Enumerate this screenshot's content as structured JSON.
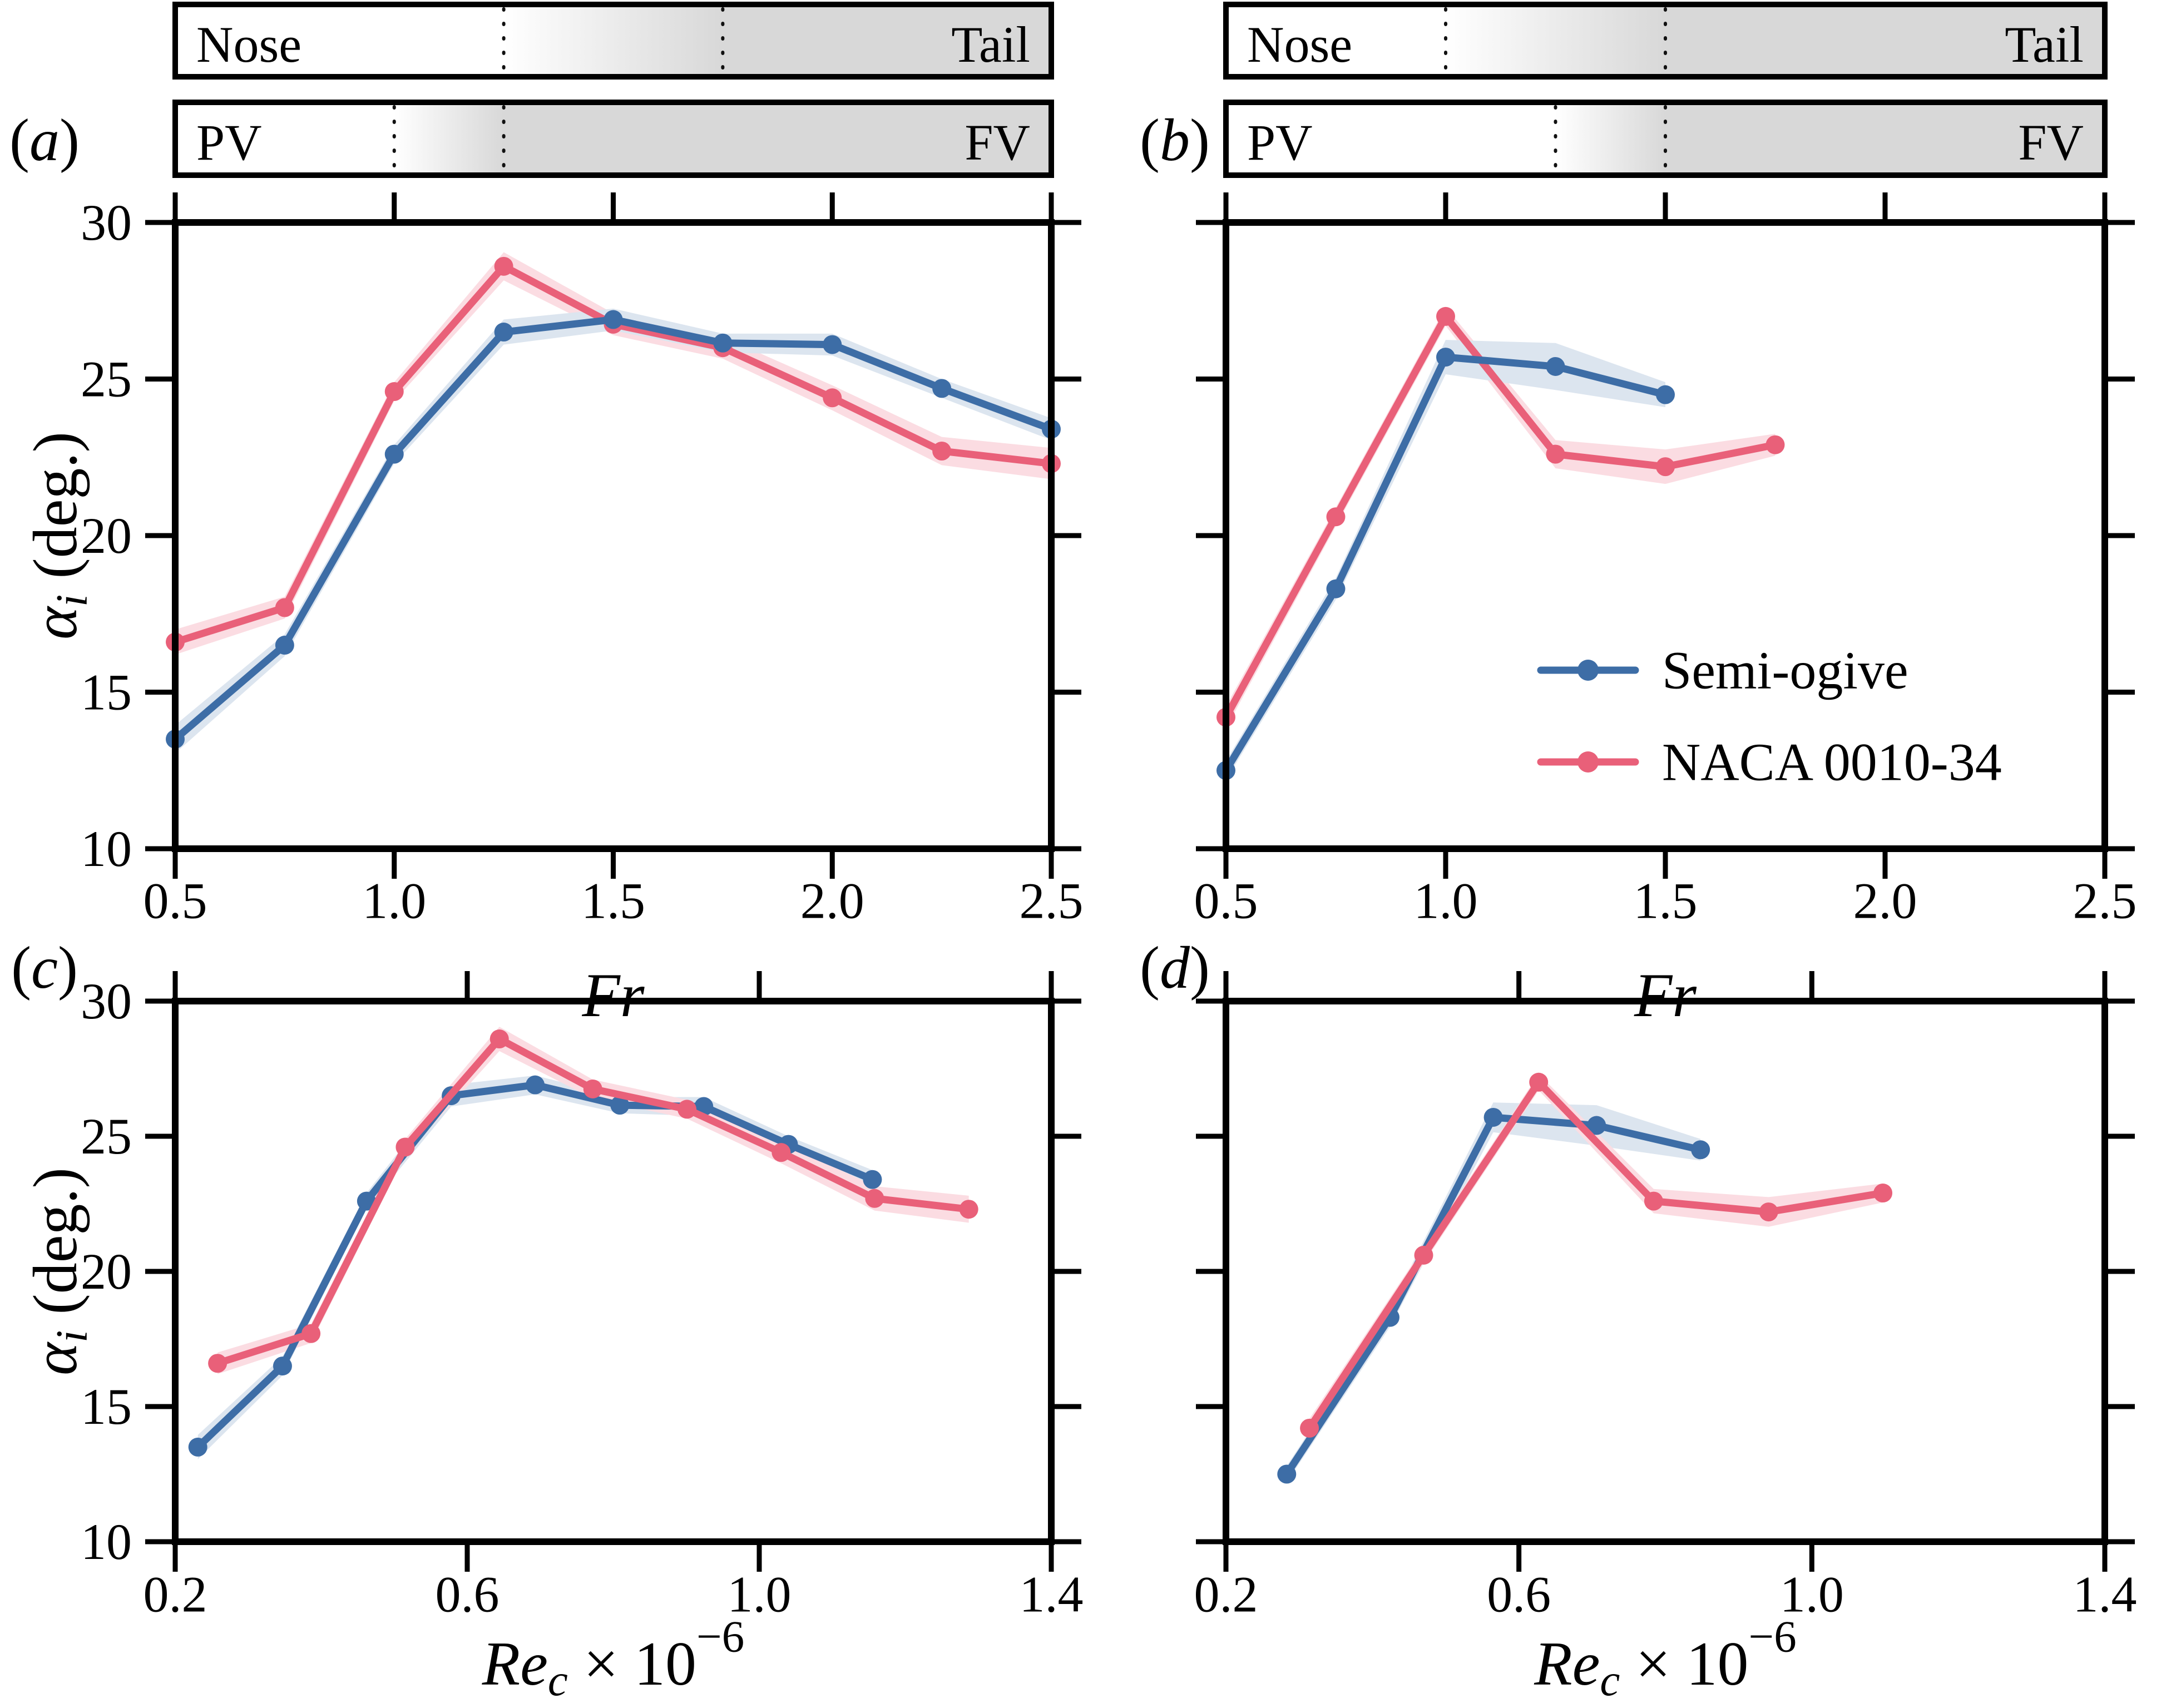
{
  "colors": {
    "semi_ogive": "#3d6da6",
    "semi_ogive_band": "#dce5ef",
    "naca": "#e96079",
    "naca_band": "#fbdce2",
    "bar_gray": "#d8d8d8",
    "axis": "#000000"
  },
  "legend": {
    "entries": [
      {
        "label": "Semi-ogive",
        "series": "semi-ogive"
      },
      {
        "label": "NACA 0010-34",
        "series": "naca"
      }
    ]
  },
  "chart_data": [
    {
      "id": "a",
      "type": "line",
      "panel_label": "a",
      "bars": [
        {
          "left": "Nose",
          "right": "Tail",
          "transition_start": 1.25,
          "transition_end": 1.75
        },
        {
          "left": "PV",
          "right": "FV",
          "transition_start": 1.0,
          "transition_end": 1.25
        }
      ],
      "x_axis": {
        "min": 0.5,
        "max": 2.5,
        "tick_values": [
          0.5,
          1.0,
          1.5,
          2.0,
          2.5
        ],
        "tick_labels": [
          "0.5",
          "1.0",
          "1.5",
          "2.0",
          "2.5"
        ],
        "title_parts": [
          {
            "t": "Fr",
            "italic": true
          }
        ]
      },
      "y_axis": {
        "min": 10,
        "max": 30,
        "tick_values": [
          10,
          15,
          20,
          25,
          30
        ],
        "tick_labels": [
          "10",
          "15",
          "20",
          "25",
          "30"
        ],
        "labels_visible": true,
        "title_parts": [
          {
            "t": "α",
            "italic": true
          },
          {
            "t": "i",
            "italic": true,
            "script": "sub"
          },
          {
            "t": " (deg.)"
          }
        ]
      },
      "series": [
        {
          "name": "NACA 0010-34",
          "key": "naca",
          "x": [
            0.5,
            0.75,
            1.0,
            1.25,
            1.5,
            1.75,
            2.0,
            2.25,
            2.5
          ],
          "y": [
            16.6,
            17.7,
            24.6,
            28.6,
            26.75,
            26.0,
            24.4,
            22.7,
            22.3
          ],
          "band": [
            0.4,
            0.35,
            0.3,
            0.45,
            0.35,
            0.35,
            0.4,
            0.45,
            0.5
          ]
        },
        {
          "name": "Semi-ogive",
          "key": "semi-ogive",
          "x": [
            0.5,
            0.75,
            1.0,
            1.25,
            1.5,
            1.75,
            2.0,
            2.25,
            2.5
          ],
          "y": [
            13.5,
            16.5,
            22.6,
            26.5,
            26.9,
            26.15,
            26.1,
            24.7,
            23.4
          ],
          "band": [
            0.45,
            0.35,
            0.3,
            0.4,
            0.35,
            0.3,
            0.35,
            0.3,
            0.35
          ]
        }
      ]
    },
    {
      "id": "b",
      "type": "line",
      "panel_label": "b",
      "has_legend": true,
      "bars": [
        {
          "left": "Nose",
          "right": "Tail",
          "transition_start": 1.0,
          "transition_end": 1.5
        },
        {
          "left": "PV",
          "right": "FV",
          "transition_start": 1.25,
          "transition_end": 1.5
        }
      ],
      "x_axis": {
        "min": 0.5,
        "max": 2.5,
        "tick_values": [
          0.5,
          1.0,
          1.5,
          2.0,
          2.5
        ],
        "tick_labels": [
          "0.5",
          "1.0",
          "1.5",
          "2.0",
          "2.5"
        ],
        "title_parts": [
          {
            "t": "Fr",
            "italic": true
          }
        ]
      },
      "y_axis": {
        "min": 10,
        "max": 30,
        "tick_values": [
          10,
          15,
          20,
          25,
          30
        ],
        "tick_labels": [
          "10",
          "15",
          "20",
          "25",
          "30"
        ],
        "labels_visible": false,
        "title_parts": []
      },
      "series": [
        {
          "name": "NACA 0010-34",
          "key": "naca",
          "x": [
            0.5,
            0.75,
            1.0,
            1.25,
            1.5,
            1.75
          ],
          "y": [
            14.2,
            20.6,
            27.0,
            22.6,
            22.2,
            22.9
          ],
          "band": [
            0.35,
            0.3,
            0.3,
            0.45,
            0.55,
            0.35
          ]
        },
        {
          "name": "Semi-ogive",
          "key": "semi-ogive",
          "x": [
            0.5,
            0.75,
            1.0,
            1.25,
            1.5
          ],
          "y": [
            12.5,
            18.3,
            25.7,
            25.4,
            24.5
          ],
          "band": [
            0.3,
            0.35,
            0.55,
            0.75,
            0.4
          ]
        }
      ]
    },
    {
      "id": "c",
      "type": "line",
      "panel_label": "c",
      "bars": null,
      "x_axis": {
        "min": 0.2,
        "max": 1.4,
        "tick_values": [
          0.2,
          0.6,
          1.0,
          1.4
        ],
        "tick_labels": [
          "0.2",
          "0.6",
          "1.0",
          "1.4"
        ],
        "title_parts": [
          {
            "t": "Re",
            "italic": true
          },
          {
            "t": "c",
            "italic": true,
            "script": "sub"
          },
          {
            "t": " × 10"
          },
          {
            "t": "−6",
            "script": "sup"
          }
        ]
      },
      "y_axis": {
        "min": 10,
        "max": 30,
        "tick_values": [
          10,
          15,
          20,
          25,
          30
        ],
        "tick_labels": [
          "10",
          "15",
          "20",
          "25",
          "30"
        ],
        "labels_visible": true,
        "title_parts": [
          {
            "t": "α",
            "italic": true
          },
          {
            "t": "i",
            "italic": true,
            "script": "sub"
          },
          {
            "t": " (deg.)"
          }
        ]
      },
      "series": [
        {
          "name": "Semi-ogive",
          "key": "semi-ogive",
          "x": [
            0.231,
            0.347,
            0.462,
            0.578,
            0.693,
            0.809,
            0.924,
            1.04,
            1.155
          ],
          "y": [
            13.5,
            16.5,
            22.6,
            26.5,
            26.9,
            26.15,
            26.1,
            24.7,
            23.4
          ],
          "band": [
            0.45,
            0.35,
            0.3,
            0.4,
            0.35,
            0.3,
            0.35,
            0.3,
            0.35
          ]
        },
        {
          "name": "NACA 0010-34",
          "key": "naca",
          "x": [
            0.258,
            0.386,
            0.515,
            0.644,
            0.772,
            0.901,
            1.03,
            1.158,
            1.287
          ],
          "y": [
            16.6,
            17.7,
            24.6,
            28.6,
            26.75,
            26.0,
            24.4,
            22.7,
            22.3
          ],
          "band": [
            0.4,
            0.35,
            0.3,
            0.45,
            0.35,
            0.35,
            0.4,
            0.45,
            0.5
          ]
        }
      ]
    },
    {
      "id": "d",
      "type": "line",
      "panel_label": "d",
      "bars": null,
      "x_axis": {
        "min": 0.2,
        "max": 1.4,
        "tick_values": [
          0.2,
          0.6,
          1.0,
          1.4
        ],
        "tick_labels": [
          "0.2",
          "0.6",
          "1.0",
          "1.4"
        ],
        "title_parts": [
          {
            "t": "Re",
            "italic": true
          },
          {
            "t": "c",
            "italic": true,
            "script": "sub"
          },
          {
            "t": " × 10"
          },
          {
            "t": "−6",
            "script": "sup"
          }
        ]
      },
      "y_axis": {
        "min": 10,
        "max": 30,
        "tick_values": [
          10,
          15,
          20,
          25,
          30
        ],
        "tick_labels": [
          "10",
          "15",
          "20",
          "25",
          "30"
        ],
        "labels_visible": false,
        "title_parts": []
      },
      "series": [
        {
          "name": "Semi-ogive",
          "key": "semi-ogive",
          "x": [
            0.283,
            0.424,
            0.565,
            0.706,
            0.848
          ],
          "y": [
            12.5,
            18.3,
            25.7,
            25.4,
            24.5
          ],
          "band": [
            0.3,
            0.35,
            0.55,
            0.75,
            0.4
          ]
        },
        {
          "name": "NACA 0010-34",
          "key": "naca",
          "x": [
            0.314,
            0.47,
            0.627,
            0.784,
            0.941,
            1.097
          ],
          "y": [
            14.2,
            20.6,
            27.0,
            22.6,
            22.2,
            22.9
          ],
          "band": [
            0.35,
            0.3,
            0.3,
            0.45,
            0.55,
            0.35
          ]
        }
      ]
    }
  ]
}
